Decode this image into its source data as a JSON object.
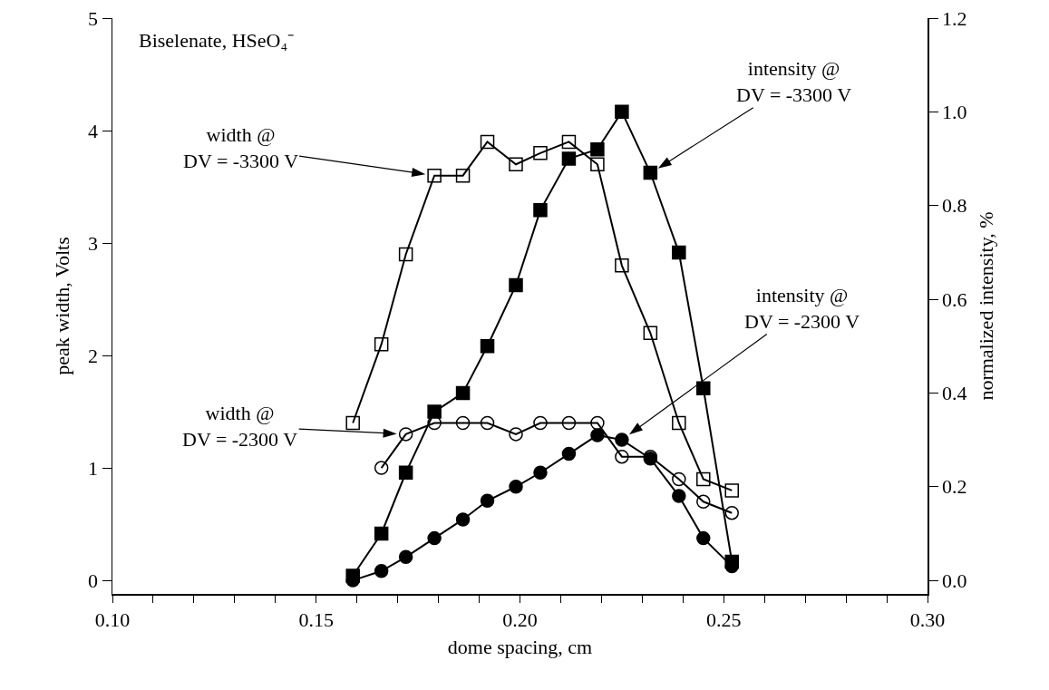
{
  "chart_data": {
    "type": "line",
    "x": [
      0.159,
      0.166,
      0.172,
      0.179,
      0.186,
      0.192,
      0.199,
      0.205,
      0.212,
      0.219,
      0.225,
      0.232,
      0.239,
      0.245,
      0.252
    ],
    "series": [
      {
        "color": "#000000",
        "marker": "square-open",
        "values": [
          1.4,
          2.1,
          2.9,
          3.6,
          3.6,
          3.9,
          3.7,
          3.8,
          3.9,
          3.7,
          2.8,
          2.2,
          1.4,
          0.9,
          0.8
        ]
      },
      {
        "color": "#000000",
        "marker": "circle-open",
        "values": [
          null,
          1.0,
          1.3,
          1.4,
          1.4,
          1.4,
          1.3,
          1.4,
          1.4,
          1.4,
          1.1,
          1.1,
          0.9,
          0.7,
          0.6
        ]
      },
      {
        "color": "#000000",
        "marker": "square",
        "axis": "y2",
        "values": [
          0.01,
          0.1,
          0.23,
          0.36,
          0.4,
          0.5,
          0.63,
          0.79,
          0.9,
          0.92,
          1.0,
          0.87,
          0.7,
          0.41,
          0.04
        ]
      },
      {
        "color": "#000000",
        "marker": "circle",
        "axis": "y2",
        "values": [
          0.0,
          0.02,
          0.05,
          0.09,
          0.13,
          0.17,
          0.2,
          0.23,
          0.27,
          0.31,
          0.3,
          0.26,
          0.18,
          0.09,
          0.03
        ]
      }
    ],
    "xlabel": "dome spacing, cm",
    "ylabel": "peak width, Volts",
    "y2label": "normalized intensity, %",
    "xlim": [
      0.1,
      0.3
    ],
    "xticks": [
      {
        "value": 0.1,
        "label": "0.10"
      },
      {
        "value": 0.11,
        "label": null
      },
      {
        "value": 0.12,
        "label": null
      },
      {
        "value": 0.13,
        "label": null
      },
      {
        "value": 0.14,
        "label": null
      },
      {
        "value": 0.15,
        "label": "0.15"
      },
      {
        "value": 0.16,
        "label": null
      },
      {
        "value": 0.17,
        "label": null
      },
      {
        "value": 0.18,
        "label": null
      },
      {
        "value": 0.19,
        "label": null
      },
      {
        "value": 0.2,
        "label": "0.20"
      },
      {
        "value": 0.21,
        "label": null
      },
      {
        "value": 0.22,
        "label": null
      },
      {
        "value": 0.23,
        "label": null
      },
      {
        "value": 0.24,
        "label": null
      },
      {
        "value": 0.25,
        "label": "0.25"
      },
      {
        "value": 0.26,
        "label": null
      },
      {
        "value": 0.27,
        "label": null
      },
      {
        "value": 0.28,
        "label": null
      },
      {
        "value": 0.29,
        "label": null
      },
      {
        "value": 0.3,
        "label": "0.30"
      }
    ],
    "ylim": [
      -0.12,
      5
    ],
    "yticks": [
      0,
      1,
      2,
      3,
      4,
      5
    ],
    "y2lim": [
      -0.0288,
      1.2
    ],
    "y2ticks": [
      {
        "value": 0,
        "label": "0.0"
      },
      {
        "value": 0.2,
        "label": "0.2"
      },
      {
        "value": 0.4,
        "label": "0.4"
      },
      {
        "value": 0.6,
        "label": "0.6"
      },
      {
        "value": 0.8,
        "label": "0.8"
      },
      {
        "value": 1,
        "label": "1.0"
      },
      {
        "value": 1.2,
        "label": "1.2"
      }
    ],
    "grid": false,
    "line_style": "solid",
    "annotations": [
      "Biselenate, HSeO₄⁻",
      {
        "text": "width @\nDV = -3300 V",
        "x": 0.179,
        "y": 3.6
      },
      {
        "text": "width @\nDV = -2300 V",
        "x": 0.172,
        "y": 1.3
      },
      {
        "text": "intensity @\nDV = -3300 V",
        "x": 0.232,
        "y": 3.62
      },
      {
        "text": "intensity @\nDV = -2300 V",
        "x": 0.225,
        "y": 1.25
      }
    ]
  }
}
